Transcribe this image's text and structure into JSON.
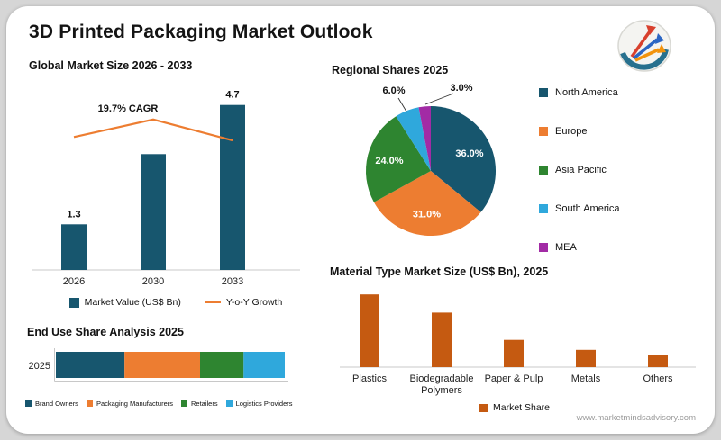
{
  "page": {
    "title": "3D Printed Packaging Market Outlook",
    "footer": "www.marketmindsadvisory.com",
    "logo_icon": "growth-arrows-logo"
  },
  "colors": {
    "teal": "#17566E",
    "orange": "#ED7D31",
    "green": "#2E8530",
    "light_blue": "#2FA8DC",
    "purple": "#A22BA5",
    "rust": "#C55A11",
    "axis": "#C8C8C8",
    "text": "#111111"
  },
  "chart_data": [
    {
      "id": "global_market_size",
      "type": "bar+line",
      "title": "Global Market Size 2026 - 2033",
      "categories": [
        "2026",
        "2030",
        "2033"
      ],
      "series": [
        {
          "name": "Market Value (US$ Bn)",
          "type": "bar",
          "values": [
            1.3,
            3.3,
            4.7
          ],
          "labels": [
            "1.3",
            "",
            "4.7"
          ],
          "color": "#17566E"
        },
        {
          "name": "Y-o-Y Growth",
          "type": "line",
          "values": [
            19.7,
            22.3,
            19.2
          ],
          "color": "#ED7D31"
        }
      ],
      "annotation": "19.7% CAGR",
      "ylim": [
        0,
        5
      ],
      "line_ylim": [
        0,
        26
      ],
      "legend": [
        {
          "label": "Market Value (US$ Bn)",
          "swatch": "square",
          "color": "#17566E"
        },
        {
          "label": "Y-o-Y Growth",
          "swatch": "line",
          "color": "#ED7D31"
        }
      ],
      "legend_position": "bottom",
      "grid": false
    },
    {
      "id": "regional_shares",
      "type": "pie",
      "title": "Regional Shares 2025",
      "slices": [
        {
          "label": "North America",
          "value": 36.0,
          "pct_label": "36.0%",
          "color": "#17566E",
          "label_inside": true
        },
        {
          "label": "Europe",
          "value": 31.0,
          "pct_label": "31.0%",
          "color": "#ED7D31",
          "label_inside": true
        },
        {
          "label": "Asia Pacific",
          "value": 24.0,
          "pct_label": "24.0%",
          "color": "#2E8530",
          "label_inside": true
        },
        {
          "label": "South America",
          "value": 6.0,
          "pct_label": "6.0%",
          "color": "#2FA8DC",
          "label_inside": false
        },
        {
          "label": "MEA",
          "value": 3.0,
          "pct_label": "3.0%",
          "color": "#A22BA5",
          "label_inside": false
        }
      ],
      "legend_position": "right"
    },
    {
      "id": "end_use_share",
      "type": "stacked-bar",
      "title": "End Use Share Analysis 2025",
      "row_label": "2025",
      "segments": [
        {
          "label": "Brand Owners",
          "value": 30,
          "color": "#17566E"
        },
        {
          "label": "Packaging Manufacturers",
          "value": 33,
          "color": "#ED7D31"
        },
        {
          "label": "Retailers",
          "value": 19,
          "color": "#2E8530"
        },
        {
          "label": "Logistics Providers",
          "value": 18,
          "color": "#2FA8DC"
        }
      ],
      "legend_position": "bottom"
    },
    {
      "id": "material_type",
      "type": "bar",
      "title": "Material Type Market Size (US$ Bn), 2025",
      "categories": [
        "Plastics",
        "Biodegradable Polymers",
        "Paper & Pulp",
        "Metals",
        "Others"
      ],
      "values": [
        0.8,
        0.6,
        0.3,
        0.19,
        0.13
      ],
      "ylim": [
        0,
        1.02
      ],
      "legend": [
        {
          "label": "Market Share",
          "color": "#C55A11"
        }
      ],
      "legend_position": "bottom",
      "grid": false
    }
  ]
}
